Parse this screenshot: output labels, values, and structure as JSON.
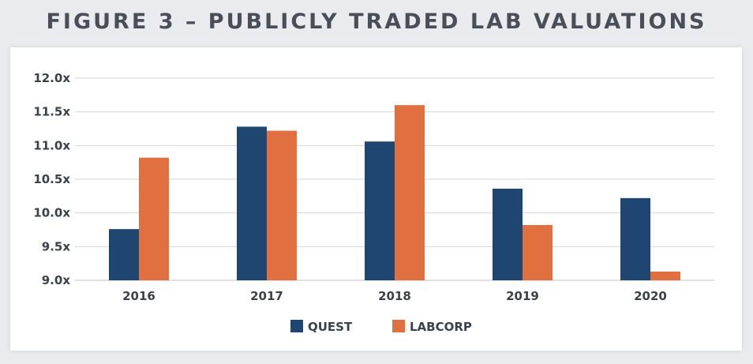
{
  "chart_data": {
    "type": "bar",
    "title": "FIGURE 3 – PUBLICLY TRADED LAB VALUATIONS",
    "categories": [
      "2016",
      "2017",
      "2018",
      "2019",
      "2020"
    ],
    "series": [
      {
        "name": "QUEST",
        "color": "#1f4670",
        "values": [
          9.76,
          11.28,
          11.06,
          10.36,
          10.22
        ]
      },
      {
        "name": "LABCORP",
        "color": "#e0703f",
        "values": [
          10.82,
          11.22,
          11.6,
          9.82,
          9.13
        ]
      }
    ],
    "yticks": [
      "9.0x",
      "9.5x",
      "10.0x",
      "10.5x",
      "11.0x",
      "11.5x",
      "12.0x"
    ],
    "ylim": [
      9.0,
      12.0
    ],
    "grid": true,
    "legend_position": "bottom-center"
  }
}
